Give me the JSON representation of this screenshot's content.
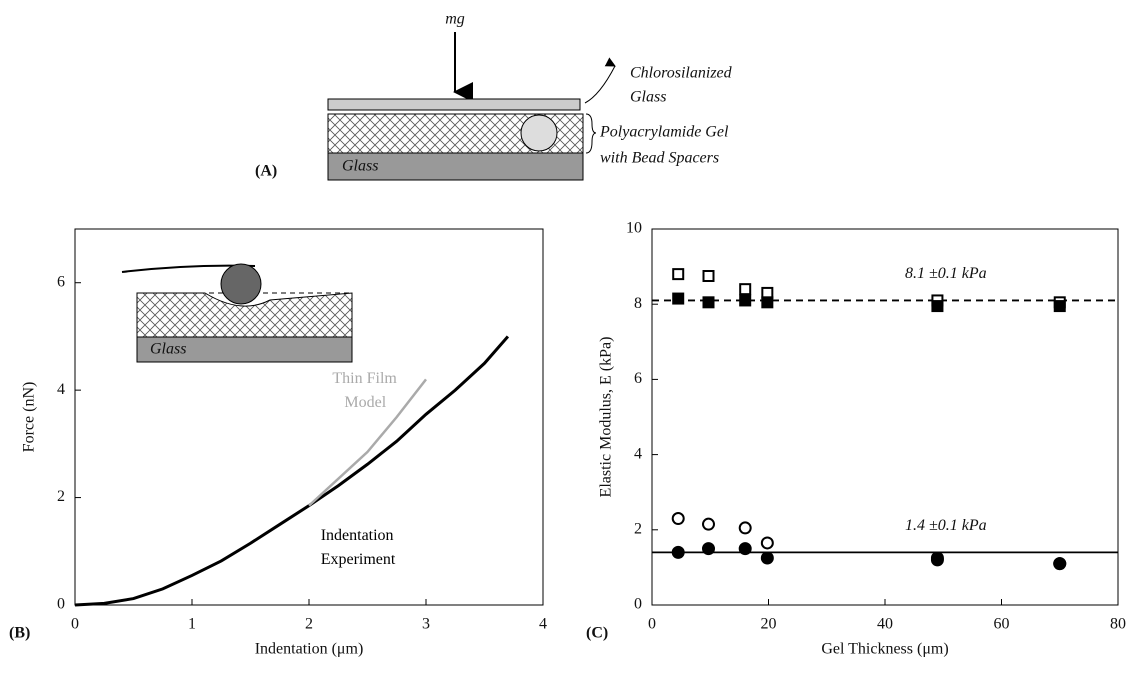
{
  "diagram": {
    "force_label": "mg",
    "top_glass_label": [
      "Chlorosilanized",
      "Glass"
    ],
    "gel_label": [
      "Polyacrylamide Gel",
      "with Bead Spacers"
    ],
    "glass_label": "Glass",
    "panel_label": "(A)",
    "inset_glass_label": "Glass"
  },
  "chart_data": [
    {
      "type": "line",
      "panel_label": "(B)",
      "xlabel": "Indentation (μm)",
      "ylabel": "Force (nN)",
      "xlim": [
        0,
        4
      ],
      "xticks": [
        0,
        1,
        2,
        3,
        4
      ],
      "ylim": [
        0,
        7
      ],
      "yticks": [
        0,
        2,
        4,
        6
      ],
      "annotations": [
        [
          "Thin Film",
          "Model"
        ],
        [
          "Indentation",
          "Experiment"
        ]
      ],
      "series": [
        {
          "name": "Indentation Experiment",
          "color": "#000000",
          "x": [
            0,
            0.25,
            0.5,
            0.75,
            1,
            1.25,
            1.5,
            1.75,
            2,
            2.25,
            2.5,
            2.75,
            3,
            3.25,
            3.5,
            3.7
          ],
          "values": [
            0,
            0.03,
            0.12,
            0.3,
            0.55,
            0.82,
            1.15,
            1.5,
            1.85,
            2.22,
            2.62,
            3.05,
            3.55,
            4.0,
            4.5,
            5.0
          ]
        },
        {
          "name": "Thin Film Model",
          "color": "#aaaaaa",
          "x": [
            2,
            2.25,
            2.5,
            2.75,
            3
          ],
          "values": [
            1.85,
            2.35,
            2.85,
            3.5,
            4.2
          ]
        }
      ]
    },
    {
      "type": "scatter",
      "panel_label": "(C)",
      "xlabel": "Gel Thickness (μm)",
      "ylabel": "Elastic Modulus, E (kPa)",
      "xlim": [
        0,
        80
      ],
      "xticks": [
        0,
        20,
        40,
        60,
        80
      ],
      "ylim": [
        0,
        10
      ],
      "yticks": [
        0,
        2,
        4,
        6,
        8,
        10
      ],
      "x": [
        4.5,
        9.7,
        16,
        19.8,
        49,
        70
      ],
      "reference_lines": [
        {
          "value": 8.1,
          "label": "8.1 ±0.1 kPa",
          "style": "dashed"
        },
        {
          "value": 1.4,
          "label": "1.4 ±0.1 kPa",
          "style": "solid"
        }
      ],
      "series": [
        {
          "marker": "square",
          "filled": false,
          "color": "#000000",
          "values": [
            8.8,
            8.75,
            8.4,
            8.3,
            8.1,
            8.05
          ]
        },
        {
          "marker": "square",
          "filled": true,
          "color": "#000000",
          "values": [
            8.15,
            8.05,
            8.1,
            8.05,
            7.95,
            7.95
          ]
        },
        {
          "marker": "circle",
          "filled": false,
          "color": "#000000",
          "values": [
            2.3,
            2.15,
            2.05,
            1.65,
            1.25,
            1.1
          ]
        },
        {
          "marker": "circle",
          "filled": true,
          "color": "#000000",
          "values": [
            1.4,
            1.5,
            1.5,
            1.25,
            1.2,
            1.1
          ]
        }
      ]
    }
  ]
}
